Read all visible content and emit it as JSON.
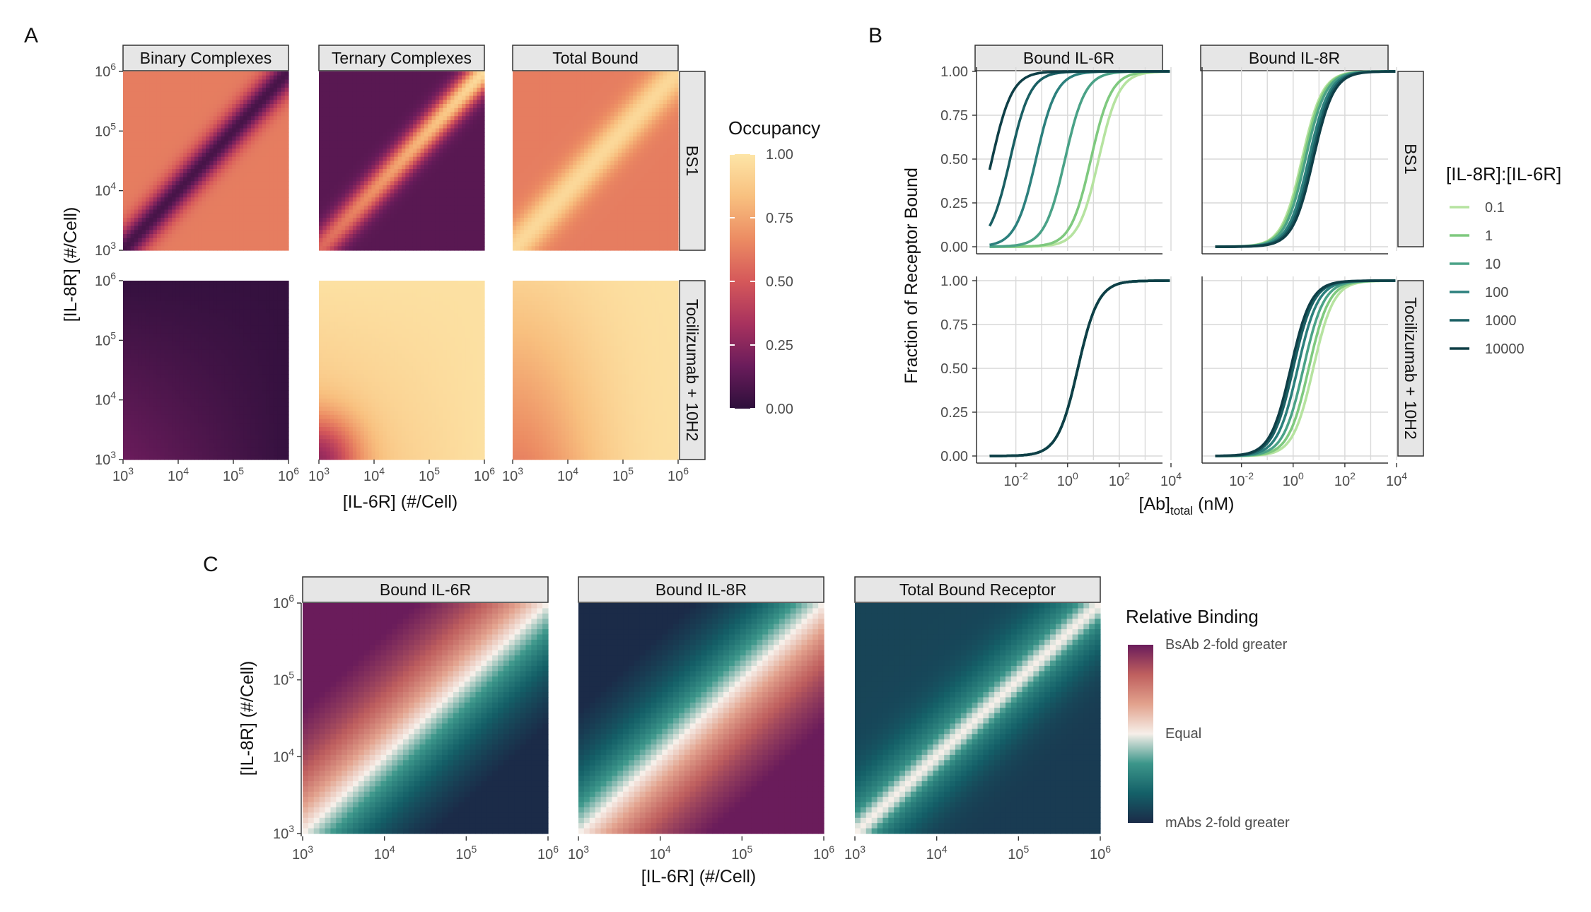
{
  "panel_labels": {
    "a": "A",
    "b": "B",
    "c": "C"
  },
  "colors": {
    "occupancy_scale": [
      "#2d0f3b",
      "#6a1c5b",
      "#a8325e",
      "#d5585a",
      "#ec8c63",
      "#f8c07f",
      "#fde5a7"
    ],
    "relative_binding_scale": [
      "#1b2b48",
      "#146068",
      "#3c968a",
      "#f6efe9",
      "#e2a28d",
      "#bf5f5e",
      "#6a1c5b"
    ],
    "ratio_series": [
      "#b6e3a0",
      "#7fc97f",
      "#4aa287",
      "#2c807d",
      "#1a5f63",
      "#0f3f47"
    ]
  },
  "chart_data": [
    {
      "id": "A",
      "type": "heatmap",
      "facet_columns": [
        "Binary Complexes",
        "Ternary Complexes",
        "Total Bound"
      ],
      "facet_rows": [
        "BS1",
        "Tocilizumab + 10H2"
      ],
      "xlabel": "[IL-6R] (#/Cell)",
      "ylabel": "[IL-8R] (#/Cell)",
      "x_scale": "log10",
      "y_scale": "log10",
      "xlim": [
        1000,
        1000000
      ],
      "ylim": [
        1000,
        1000000
      ],
      "x_ticks": [
        1000,
        10000,
        100000,
        1000000
      ],
      "y_ticks": [
        1000,
        10000,
        100000,
        1000000
      ],
      "fill_label": "Occupancy",
      "fill_range": [
        0,
        1
      ],
      "legend_ticks": [
        "1.00",
        "0.75",
        "0.50",
        "0.25",
        "0.00"
      ],
      "legend_position": "right"
    },
    {
      "id": "B",
      "type": "line",
      "facet_columns": [
        "Bound IL-6R",
        "Bound IL-8R"
      ],
      "facet_rows": [
        "BS1",
        "Tocilizumab + 10H2"
      ],
      "xlabel_main": "[Ab]",
      "xlabel_sub": "total",
      "xlabel_unit": " (nM)",
      "ylabel": "Fraction of Receptor Bound",
      "x_scale": "log10",
      "xlim": [
        0.0003,
        10000
      ],
      "ylim": [
        0,
        1
      ],
      "x_ticks": [
        0.01,
        1,
        100,
        10000
      ],
      "y_ticks": [
        "0.00",
        "0.25",
        "0.50",
        "0.75",
        "1.00"
      ],
      "grid": true,
      "legend_title": "[IL-8R]:[IL-6R]",
      "legend_position": "right",
      "series": [
        {
          "name": "0.1"
        },
        {
          "name": "1"
        },
        {
          "name": "10"
        },
        {
          "name": "100"
        },
        {
          "name": "1000"
        },
        {
          "name": "10000"
        }
      ],
      "ec50_nM": {
        "BS1|Bound IL-6R": [
          16,
          8,
          0.8,
          0.06,
          0.006,
          0.0012
        ],
        "BS1|Bound IL-8R": [
          2.2,
          2.5,
          3,
          4,
          5,
          6
        ],
        "Tocilizumab + 10H2|Bound IL-6R": [
          2.5,
          2.5,
          2.5,
          2.5,
          2.5,
          2.5
        ],
        "Tocilizumab + 10H2|Bound IL-8R": [
          6,
          4,
          2.5,
          1.5,
          1,
          0.8
        ]
      }
    },
    {
      "id": "C",
      "type": "heatmap",
      "facet_columns": [
        "Bound IL-6R",
        "Bound IL-8R",
        "Total Bound Receptor"
      ],
      "xlabel": "[IL-6R] (#/Cell)",
      "ylabel": "[IL-8R] (#/Cell)",
      "x_scale": "log10",
      "y_scale": "log10",
      "xlim": [
        1000,
        1000000
      ],
      "ylim": [
        1000,
        1000000
      ],
      "x_ticks": [
        1000,
        10000,
        100000,
        1000000
      ],
      "y_ticks": [
        1000,
        10000,
        100000,
        1000000
      ],
      "fill_label": "Relative Binding",
      "legend_labels": [
        "BsAb 2-fold greater",
        "Equal",
        "mAbs 2-fold greater"
      ],
      "legend_position": "right"
    }
  ]
}
